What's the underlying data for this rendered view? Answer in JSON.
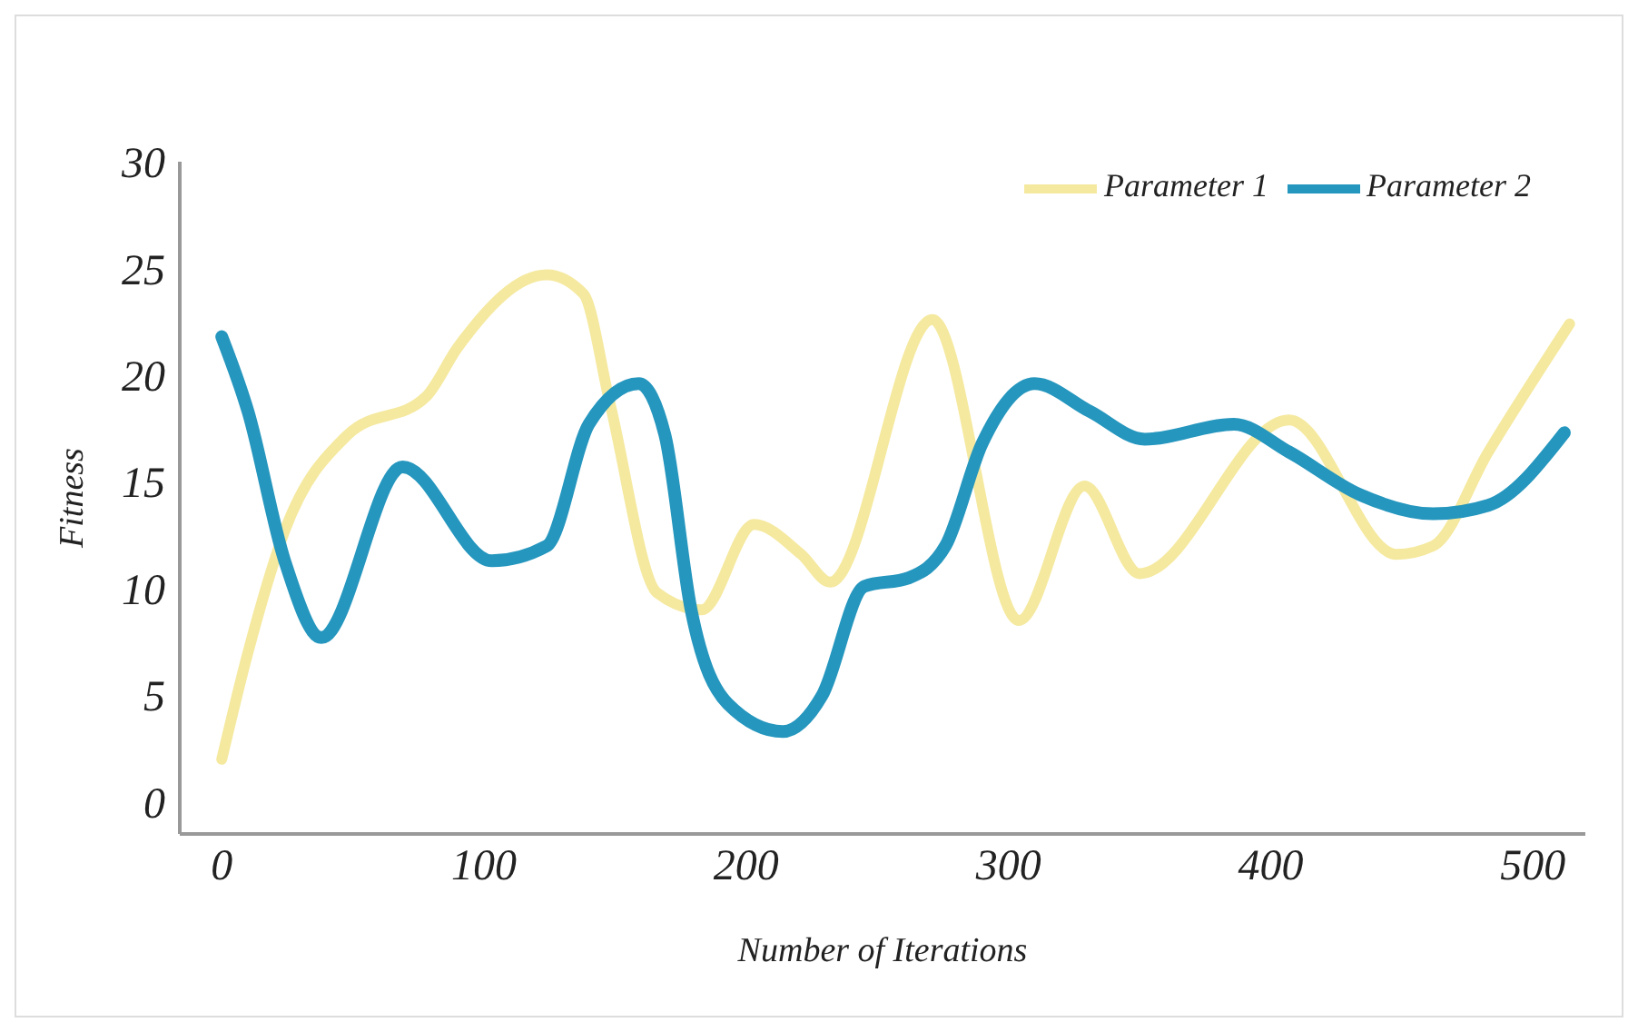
{
  "chart_data": {
    "type": "line",
    "xlabel": "Number of Iterations",
    "ylabel": "Fitness",
    "xlim": [
      -16,
      520
    ],
    "xticks": [
      0,
      100,
      200,
      300,
      400,
      500
    ],
    "ylim": [
      -1.5,
      30
    ],
    "yticks": [
      0,
      5,
      10,
      15,
      20,
      25,
      30
    ],
    "grid": false,
    "legend": "top right",
    "marker": "none",
    "line_style": "solid",
    "series": [
      {
        "name": "Parameter 1",
        "color": "#f5e9a0",
        "x": [
          0,
          10,
          24,
          48,
          78,
          90,
          124,
          138,
          148,
          166,
          183,
          203,
          221,
          232,
          271,
          304,
          329,
          350,
          407,
          448,
          462,
          483,
          514
        ],
        "values": [
          2,
          7,
          12.7,
          17.2,
          19,
          21.3,
          24.7,
          23.8,
          18.7,
          9.8,
          9.0,
          13,
          11.6,
          10.3,
          22.6,
          8.5,
          14.8,
          10.7,
          17.9,
          11.6,
          12,
          16.4,
          22.4
        ]
      },
      {
        "name": "Parameter 2",
        "color": "#2596be",
        "x": [
          0,
          10,
          24,
          38,
          69,
          103,
          124,
          140,
          159,
          169,
          179,
          193,
          214,
          229,
          245,
          262,
          276,
          290,
          310,
          331,
          352,
          386,
          407,
          434,
          462,
          483,
          512
        ],
        "values": [
          21.8,
          18.3,
          11.3,
          7.7,
          15.7,
          11.3,
          12,
          17.7,
          19.6,
          17.2,
          9,
          4.6,
          3.3,
          5,
          10.1,
          10.5,
          12,
          16.8,
          19.6,
          18.3,
          17,
          17.7,
          16.4,
          14.4,
          13.5,
          13.9,
          17.3
        ]
      }
    ]
  }
}
